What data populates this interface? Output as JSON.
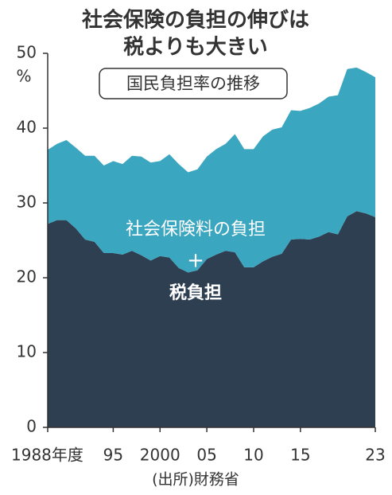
{
  "chart_data": {
    "type": "stacked_area",
    "title": [
      "社会保険の負担の伸びは",
      "税よりも大きい"
    ],
    "subtitle": "国民負担率の推移",
    "y_unit": "%",
    "annotation": "+",
    "source": "(出所)財務省",
    "x": [
      1988,
      1989,
      1990,
      1991,
      1992,
      1993,
      1994,
      1995,
      1996,
      1997,
      1998,
      1999,
      2000,
      2001,
      2002,
      2003,
      2004,
      2005,
      2006,
      2007,
      2008,
      2009,
      2010,
      2011,
      2012,
      2013,
      2014,
      2015,
      2016,
      2017,
      2018,
      2019,
      2020,
      2021,
      2022,
      2023
    ],
    "xlim": [
      1988,
      2023
    ],
    "xticks": [
      {
        "value": 1988,
        "label": "1988年度"
      },
      {
        "value": 1995,
        "label": "95"
      },
      2000,
      {
        "value": 2005,
        "label": "05"
      },
      {
        "value": 2010,
        "label": "10"
      },
      {
        "value": 2015,
        "label": "15"
      },
      {
        "value": 2023,
        "label": "23"
      }
    ],
    "ylim": [
      0,
      50
    ],
    "yticks": [
      0,
      10,
      20,
      30,
      40,
      50
    ],
    "series": [
      {
        "name": "税負担",
        "color": "#2e3f52",
        "values": [
          27.2,
          27.7,
          27.7,
          26.6,
          25.1,
          24.8,
          23.3,
          23.3,
          23.1,
          23.6,
          23.0,
          22.3,
          22.9,
          22.7,
          21.3,
          20.7,
          21.0,
          22.5,
          23.1,
          23.6,
          23.4,
          21.4,
          21.4,
          22.2,
          22.8,
          23.2,
          25.1,
          25.2,
          25.1,
          25.5,
          26.1,
          25.8,
          28.2,
          28.9,
          28.6,
          28.1
        ]
      },
      {
        "name": "社会保険料の負担",
        "color": "#3ba6bf",
        "values": [
          9.9,
          10.2,
          10.7,
          10.8,
          11.2,
          11.5,
          11.7,
          12.3,
          12.1,
          12.7,
          13.2,
          13.1,
          12.7,
          13.8,
          13.9,
          13.4,
          13.5,
          13.7,
          14.1,
          14.3,
          15.8,
          15.8,
          15.8,
          16.7,
          17.0,
          16.9,
          17.3,
          17.1,
          17.6,
          17.8,
          18.1,
          18.6,
          19.7,
          19.2,
          18.9,
          18.7
        ]
      }
    ]
  }
}
